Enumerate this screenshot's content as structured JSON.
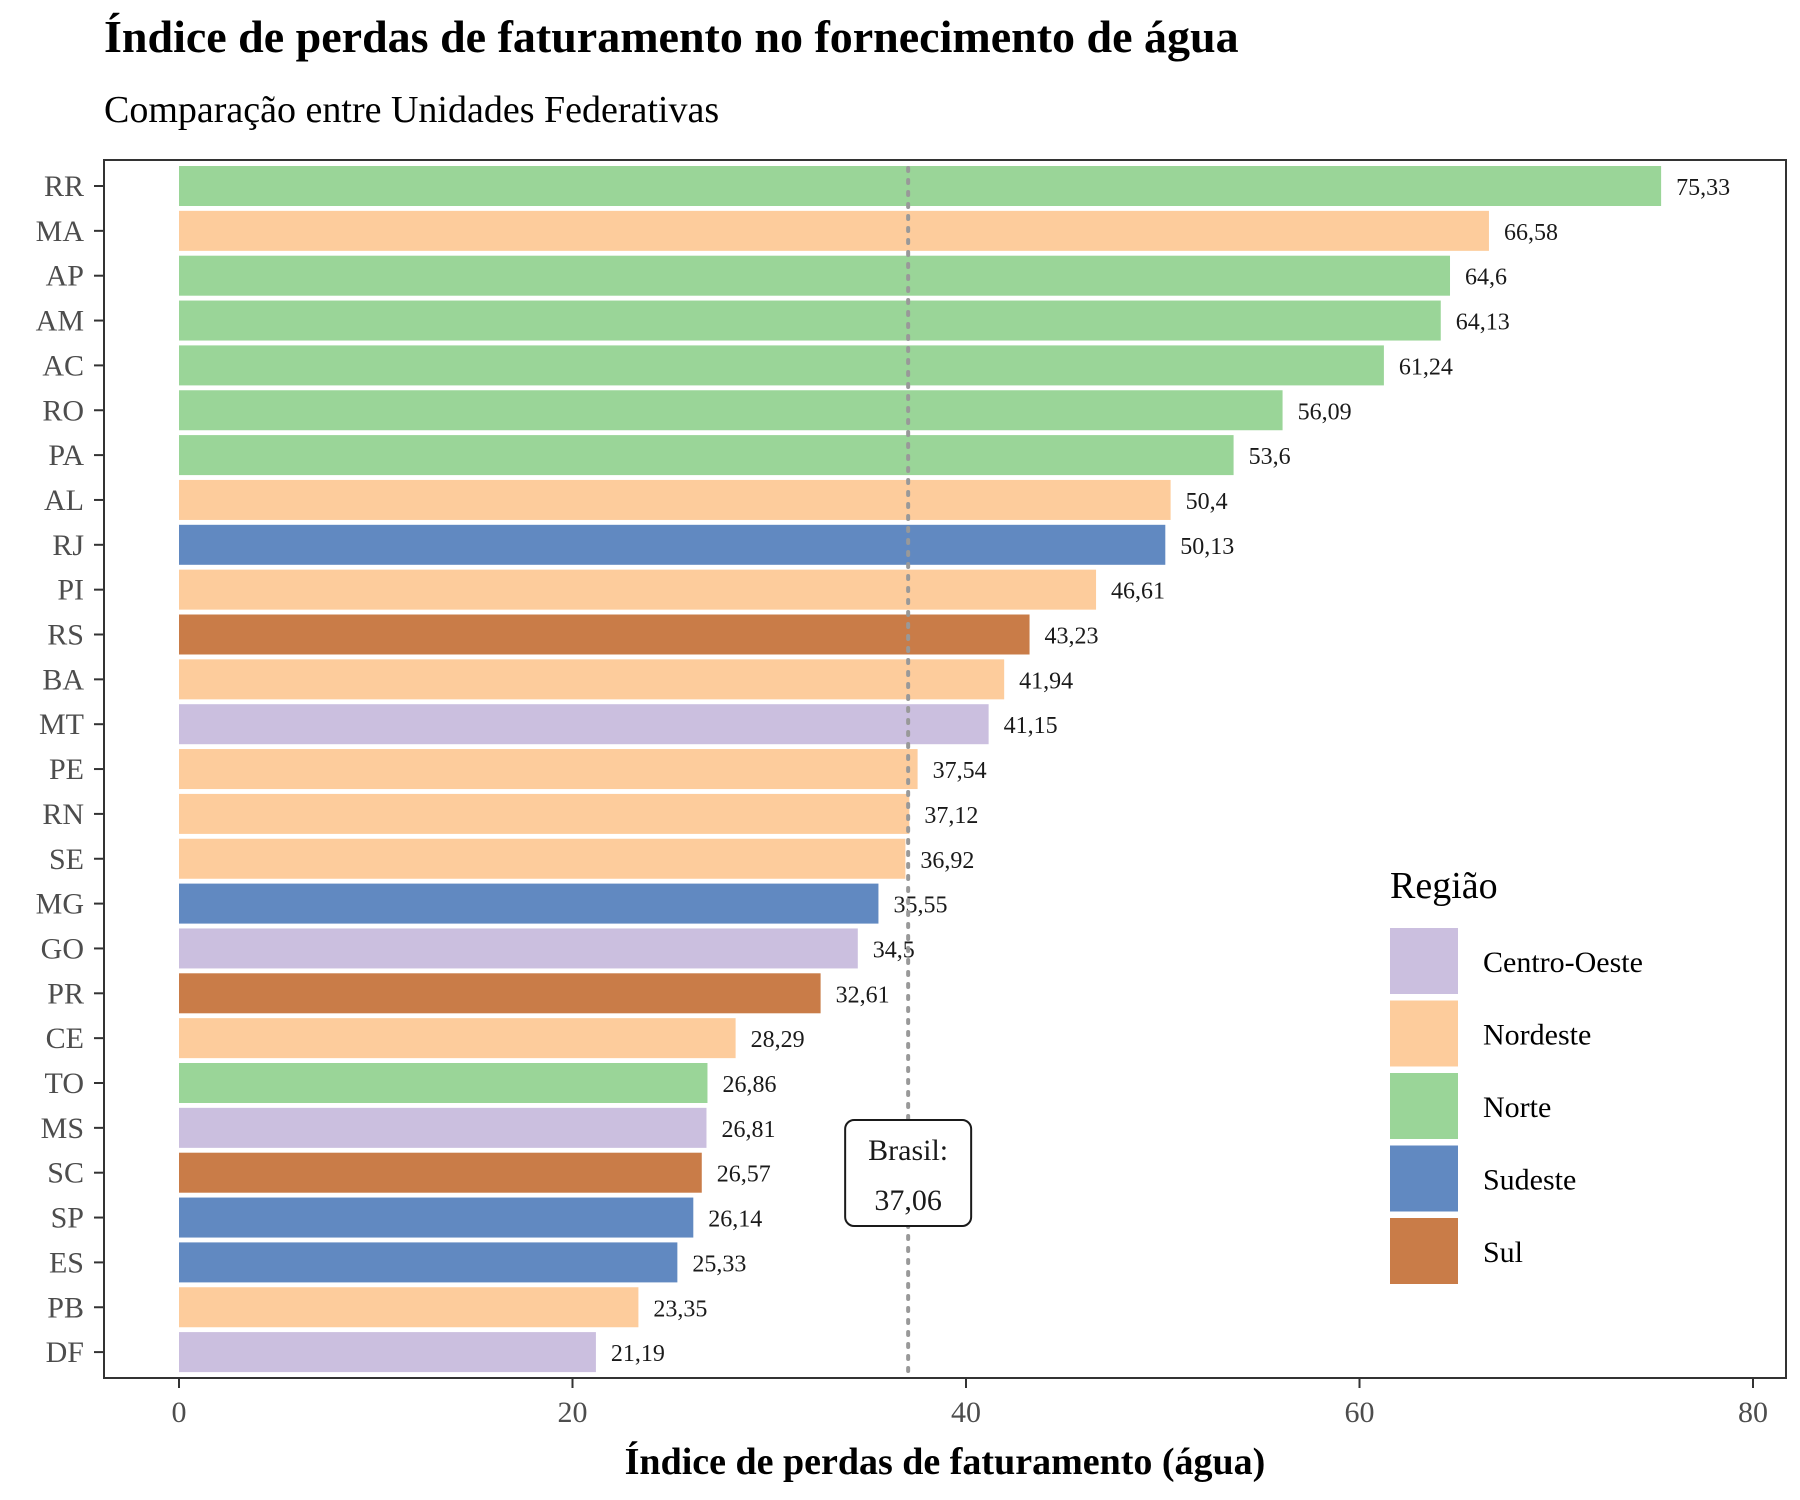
{
  "chart_data": {
    "type": "bar",
    "orientation": "horizontal",
    "title": "Índice de perdas de faturamento no fornecimento de água",
    "subtitle": "Comparação entre Unidades Federativas",
    "xlabel": "Índice de perdas de faturamento (água)",
    "ylabel": "",
    "xlim": [
      0,
      80
    ],
    "x_ticks": [
      0,
      20,
      40,
      60,
      80
    ],
    "grid": false,
    "legend": {
      "title": "Região",
      "placement": "bottom-right",
      "entries": [
        {
          "name": "Centro-Oeste",
          "color": "#cbbfdf"
        },
        {
          "name": "Nordeste",
          "color": "#fdcc9c"
        },
        {
          "name": "Norte",
          "color": "#9ad598"
        },
        {
          "name": "Sudeste",
          "color": "#6189c1"
        },
        {
          "name": "Sul",
          "color": "#c97c48"
        }
      ]
    },
    "reference_line": {
      "value": 37.06,
      "label_line1": "Brasil:",
      "label_line2": "37,06"
    },
    "bars": [
      {
        "category": "RR",
        "value": 75.33,
        "label": "75,33",
        "region": "Norte"
      },
      {
        "category": "MA",
        "value": 66.58,
        "label": "66,58",
        "region": "Nordeste"
      },
      {
        "category": "AP",
        "value": 64.6,
        "label": "64,6",
        "region": "Norte"
      },
      {
        "category": "AM",
        "value": 64.13,
        "label": "64,13",
        "region": "Norte"
      },
      {
        "category": "AC",
        "value": 61.24,
        "label": "61,24",
        "region": "Norte"
      },
      {
        "category": "RO",
        "value": 56.09,
        "label": "56,09",
        "region": "Norte"
      },
      {
        "category": "PA",
        "value": 53.6,
        "label": "53,6",
        "region": "Norte"
      },
      {
        "category": "AL",
        "value": 50.4,
        "label": "50,4",
        "region": "Nordeste"
      },
      {
        "category": "RJ",
        "value": 50.13,
        "label": "50,13",
        "region": "Sudeste"
      },
      {
        "category": "PI",
        "value": 46.61,
        "label": "46,61",
        "region": "Nordeste"
      },
      {
        "category": "RS",
        "value": 43.23,
        "label": "43,23",
        "region": "Sul"
      },
      {
        "category": "BA",
        "value": 41.94,
        "label": "41,94",
        "region": "Nordeste"
      },
      {
        "category": "MT",
        "value": 41.15,
        "label": "41,15",
        "region": "Centro-Oeste"
      },
      {
        "category": "PE",
        "value": 37.54,
        "label": "37,54",
        "region": "Nordeste"
      },
      {
        "category": "RN",
        "value": 37.12,
        "label": "37,12",
        "region": "Nordeste"
      },
      {
        "category": "SE",
        "value": 36.92,
        "label": "36,92",
        "region": "Nordeste"
      },
      {
        "category": "MG",
        "value": 35.55,
        "label": "35,55",
        "region": "Sudeste"
      },
      {
        "category": "GO",
        "value": 34.5,
        "label": "34,5",
        "region": "Centro-Oeste"
      },
      {
        "category": "PR",
        "value": 32.61,
        "label": "32,61",
        "region": "Sul"
      },
      {
        "category": "CE",
        "value": 28.29,
        "label": "28,29",
        "region": "Nordeste"
      },
      {
        "category": "TO",
        "value": 26.86,
        "label": "26,86",
        "region": "Norte"
      },
      {
        "category": "MS",
        "value": 26.81,
        "label": "26,81",
        "region": "Centro-Oeste"
      },
      {
        "category": "SC",
        "value": 26.57,
        "label": "26,57",
        "region": "Sul"
      },
      {
        "category": "SP",
        "value": 26.14,
        "label": "26,14",
        "region": "Sudeste"
      },
      {
        "category": "ES",
        "value": 25.33,
        "label": "25,33",
        "region": "Sudeste"
      },
      {
        "category": "PB",
        "value": 23.35,
        "label": "23,35",
        "region": "Nordeste"
      },
      {
        "category": "DF",
        "value": 21.19,
        "label": "21,19",
        "region": "Centro-Oeste"
      }
    ]
  }
}
